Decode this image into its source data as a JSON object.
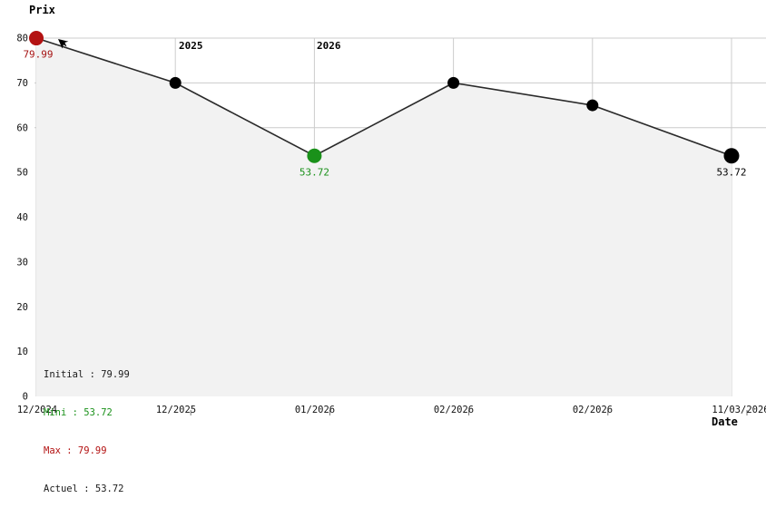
{
  "chart": {
    "y_axis_title": "Prix",
    "x_axis_title": "Date",
    "year_markers": [
      {
        "label": "2025"
      },
      {
        "label": "2026"
      }
    ],
    "legend": [
      {
        "label": "Initial : 79.99",
        "color": "#1a1a1a"
      },
      {
        "label": "Mini : 53.72",
        "color": "#1a911a"
      },
      {
        "label": "Max : 79.99",
        "color": "#b31212"
      },
      {
        "label": "Actuel : 53.72",
        "color": "#1a1a1a"
      }
    ]
  },
  "chart_data": {
    "type": "line",
    "title": "",
    "xlabel": "Date",
    "ylabel": "Prix",
    "ylim": [
      0,
      80
    ],
    "y_ticks": [
      0,
      10,
      20,
      30,
      40,
      50,
      60,
      70,
      80
    ],
    "grid_levels_visible": [
      80,
      70,
      60
    ],
    "x_tick_labels": [
      "12/2024",
      "12/2025",
      "01/2026",
      "02/2026",
      "02/2026",
      "11/03/2026"
    ],
    "area_fill": true,
    "legend_position": "bottom-left",
    "points": [
      {
        "date": "12/2024",
        "value": 79.99,
        "marker_color": "#b31212",
        "size": "large",
        "label": "79.99",
        "label_color": "#a51111"
      },
      {
        "date": "12/2025",
        "value": 70,
        "marker_color": "#000000",
        "size": "normal"
      },
      {
        "date": "01/2026",
        "value": 53.72,
        "marker_color": "#1a911a",
        "size": "large",
        "label": "53.72",
        "label_color": "#1a911a"
      },
      {
        "date": "02/2026",
        "value": 70,
        "marker_color": "#000000",
        "size": "normal"
      },
      {
        "date": "02/2026",
        "value": 65,
        "marker_color": "#000000",
        "size": "normal"
      },
      {
        "date": "11/03/2026",
        "value": 53.72,
        "marker_color": "#000000",
        "size": "xlarge",
        "label": "53.72",
        "label_color": "#000000"
      }
    ],
    "stats": {
      "initial": 79.99,
      "mini": 53.72,
      "max": 79.99,
      "actuel": 53.72
    },
    "colors": {
      "line": "#2a2a2a",
      "grid": "#cccccc",
      "area_fill": "#f2f2f2"
    }
  }
}
